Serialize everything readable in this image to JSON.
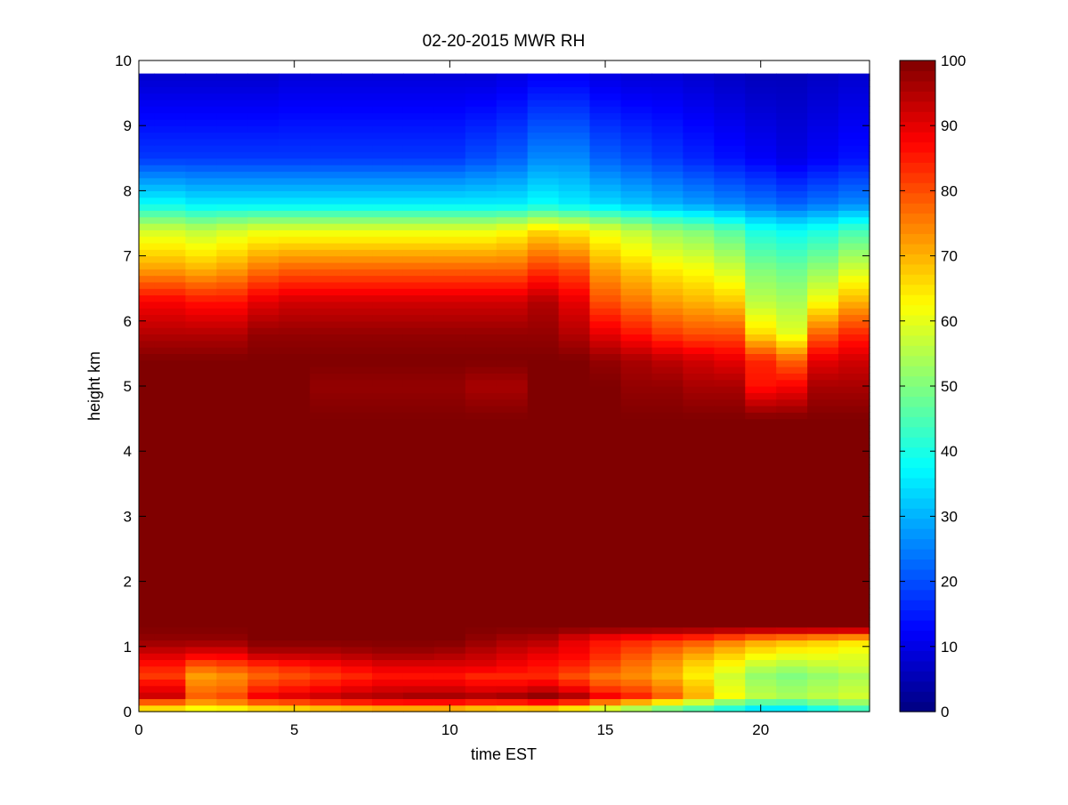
{
  "chart_data": {
    "type": "heatmap",
    "title": "02-20-2015 MWR RH",
    "xlabel": "time EST",
    "ylabel": "height km",
    "xlim": [
      0,
      23.5
    ],
    "ylim": [
      0,
      10
    ],
    "xticks": [
      0,
      5,
      10,
      15,
      20
    ],
    "yticks": [
      0,
      1,
      2,
      3,
      4,
      5,
      6,
      7,
      8,
      9,
      10
    ],
    "colorbar": {
      "min": 0,
      "max": 100,
      "ticks": [
        0,
        10,
        20,
        30,
        40,
        50,
        60,
        70,
        80,
        90,
        100
      ],
      "colormap": "jet"
    },
    "time_hours": [
      0,
      1,
      2,
      3,
      4,
      5,
      6,
      7,
      8,
      9,
      10,
      11,
      12,
      13,
      14,
      15,
      16,
      17,
      18,
      19,
      20,
      21,
      22,
      23
    ],
    "height_km_max": 9.75,
    "profile_heights_km": [
      0,
      0.1,
      0.25,
      0.4,
      0.55,
      0.7,
      0.9,
      1.1,
      1.3,
      4.5,
      5.0,
      5.4,
      5.8,
      6.3,
      6.8,
      7.4,
      7.8,
      8.5,
      9.75
    ],
    "rh_profiles": [
      [
        60,
        72,
        92,
        88,
        82,
        85,
        92,
        98,
        100,
        100,
        100,
        100,
        95,
        88,
        72,
        58,
        38,
        18,
        8
      ],
      [
        60,
        72,
        92,
        88,
        82,
        85,
        92,
        98,
        100,
        100,
        100,
        100,
        95,
        88,
        72,
        58,
        38,
        18,
        8
      ],
      [
        55,
        70,
        78,
        75,
        72,
        78,
        90,
        98,
        100,
        100,
        100,
        100,
        95,
        86,
        70,
        56,
        36,
        18,
        8
      ],
      [
        55,
        72,
        80,
        76,
        74,
        80,
        90,
        98,
        100,
        100,
        100,
        100,
        95,
        86,
        72,
        58,
        36,
        18,
        8
      ],
      [
        58,
        75,
        88,
        82,
        78,
        82,
        95,
        100,
        100,
        100,
        100,
        100,
        98,
        90,
        76,
        60,
        36,
        18,
        8
      ],
      [
        58,
        76,
        90,
        84,
        80,
        84,
        95,
        100,
        100,
        100,
        100,
        100,
        98,
        92,
        78,
        60,
        36,
        18,
        9
      ],
      [
        60,
        78,
        92,
        86,
        82,
        86,
        95,
        100,
        100,
        100,
        98,
        100,
        98,
        92,
        78,
        60,
        36,
        18,
        9
      ],
      [
        60,
        80,
        94,
        88,
        84,
        88,
        96,
        100,
        100,
        100,
        98,
        100,
        98,
        92,
        78,
        60,
        36,
        18,
        9
      ],
      [
        60,
        82,
        95,
        90,
        86,
        90,
        97,
        100,
        100,
        100,
        98,
        100,
        98,
        92,
        78,
        60,
        36,
        18,
        9
      ],
      [
        60,
        82,
        96,
        90,
        86,
        90,
        97,
        100,
        100,
        100,
        98,
        100,
        98,
        92,
        78,
        60,
        36,
        18,
        9
      ],
      [
        60,
        82,
        96,
        90,
        86,
        90,
        96,
        100,
        100,
        100,
        98,
        100,
        98,
        92,
        78,
        60,
        36,
        18,
        9
      ],
      [
        58,
        80,
        95,
        88,
        84,
        90,
        94,
        98,
        100,
        100,
        96,
        100,
        98,
        92,
        78,
        60,
        36,
        20,
        9
      ],
      [
        56,
        80,
        96,
        88,
        84,
        88,
        92,
        96,
        100,
        100,
        96,
        100,
        98,
        92,
        78,
        62,
        36,
        22,
        10
      ],
      [
        55,
        82,
        98,
        90,
        84,
        86,
        90,
        95,
        100,
        100,
        100,
        100,
        98,
        95,
        82,
        66,
        38,
        26,
        12
      ],
      [
        52,
        78,
        95,
        86,
        80,
        84,
        88,
        90,
        100,
        100,
        100,
        100,
        95,
        90,
        80,
        64,
        36,
        26,
        12
      ],
      [
        48,
        70,
        88,
        80,
        76,
        80,
        84,
        86,
        100,
        100,
        100,
        98,
        90,
        80,
        72,
        60,
        34,
        22,
        10
      ],
      [
        45,
        64,
        84,
        78,
        74,
        76,
        80,
        84,
        100,
        100,
        98,
        96,
        86,
        76,
        68,
        56,
        32,
        20,
        9
      ],
      [
        42,
        58,
        78,
        74,
        70,
        72,
        76,
        82,
        100,
        100,
        98,
        94,
        82,
        72,
        64,
        52,
        30,
        18,
        9
      ],
      [
        40,
        52,
        70,
        68,
        64,
        66,
        72,
        80,
        100,
        100,
        96,
        92,
        80,
        70,
        62,
        50,
        28,
        16,
        8
      ],
      [
        36,
        46,
        62,
        60,
        58,
        62,
        68,
        76,
        100,
        100,
        96,
        90,
        80,
        68,
        58,
        46,
        26,
        14,
        7
      ],
      [
        30,
        42,
        56,
        54,
        52,
        56,
        64,
        72,
        100,
        100,
        86,
        84,
        66,
        56,
        50,
        40,
        24,
        12,
        6
      ],
      [
        30,
        42,
        54,
        52,
        50,
        54,
        62,
        70,
        100,
        100,
        88,
        78,
        60,
        54,
        48,
        38,
        22,
        10,
        6
      ],
      [
        34,
        46,
        56,
        54,
        52,
        56,
        62,
        68,
        100,
        100,
        96,
        90,
        78,
        62,
        52,
        40,
        24,
        12,
        7
      ],
      [
        38,
        50,
        58,
        56,
        54,
        58,
        60,
        66,
        100,
        100,
        96,
        92,
        84,
        70,
        58,
        44,
        26,
        14,
        8
      ]
    ]
  }
}
